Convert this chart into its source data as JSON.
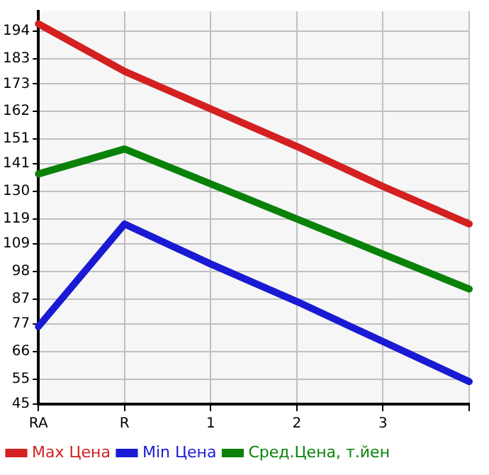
{
  "chart_data": {
    "type": "line",
    "categories": [
      "RA",
      "R",
      "1",
      "2",
      "3",
      null
    ],
    "ylim": [
      45,
      202
    ],
    "yticks": [
      45,
      55,
      66,
      77,
      87,
      98,
      109,
      119,
      130,
      141,
      151,
      162,
      173,
      183,
      194
    ],
    "series": [
      {
        "name": "Max Цена",
        "color": "#d42020",
        "values": [
          197,
          178,
          163,
          148,
          132,
          117
        ]
      },
      {
        "name": "Min Цена",
        "color": "#1a1ad4",
        "values": [
          76,
          117,
          101,
          86,
          70,
          54
        ]
      },
      {
        "name": "Сред.Цена, т.йен",
        "color": "#0a820a",
        "values": [
          137,
          147,
          133,
          119,
          105,
          91
        ]
      }
    ],
    "grid": true,
    "legend": "bottom",
    "marker": "none",
    "line_style": "solid"
  }
}
